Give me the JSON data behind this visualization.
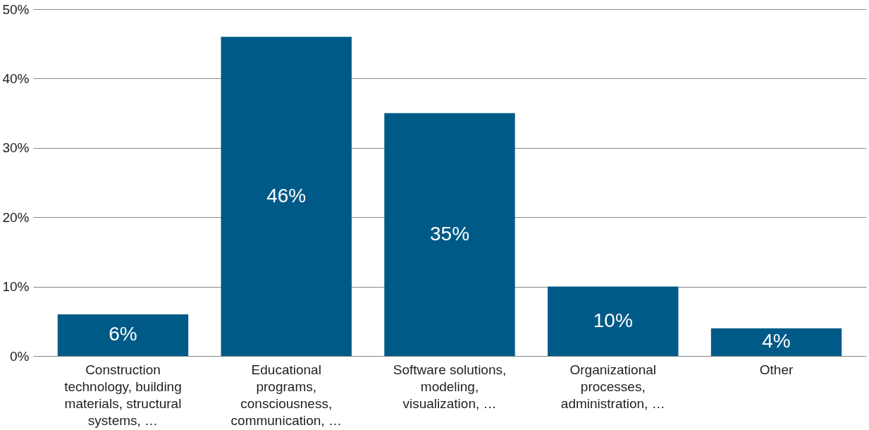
{
  "chart_data": {
    "type": "bar",
    "categories": [
      "Construction technology, building materials, structural systems, …",
      "Educational programs, consciousness, communication, …",
      "Software solutions, modeling, visualization, …",
      "Organizational processes, administration, …",
      "Other"
    ],
    "values": [
      6,
      46,
      35,
      10,
      4
    ],
    "value_labels": [
      "6%",
      "46%",
      "35%",
      "10%",
      "4%"
    ],
    "color": "#005a87",
    "ylim": [
      0,
      50
    ],
    "yticks": [
      {
        "value": 0,
        "label": "0%"
      },
      {
        "value": 10,
        "label": "10%"
      },
      {
        "value": 20,
        "label": "20%"
      },
      {
        "value": 30,
        "label": "30%"
      },
      {
        "value": 40,
        "label": "40%"
      },
      {
        "value": 50,
        "label": "50%"
      }
    ],
    "grid": "y"
  }
}
